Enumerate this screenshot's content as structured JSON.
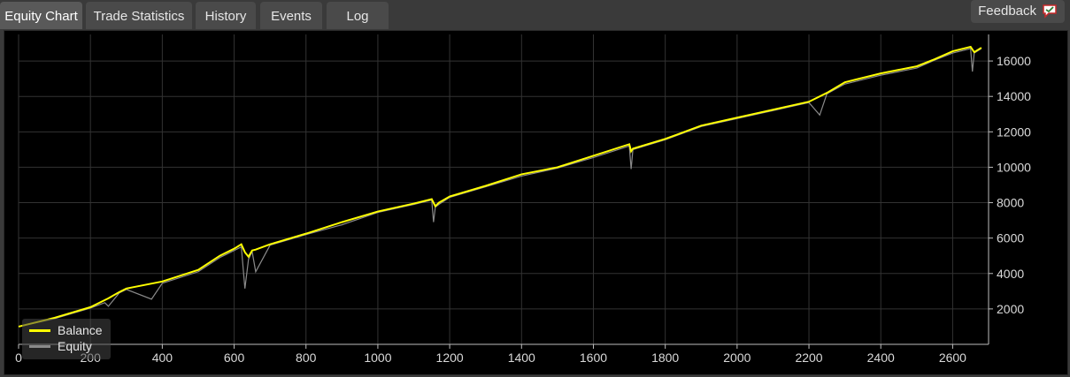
{
  "tabs": [
    {
      "label": "Equity Chart",
      "active": true
    },
    {
      "label": "Trade Statistics",
      "active": false
    },
    {
      "label": "History",
      "active": false
    },
    {
      "label": "Events",
      "active": false
    },
    {
      "label": "Log",
      "active": false
    }
  ],
  "feedback": {
    "label": "Feedback",
    "icon": "speech-bubble-icon"
  },
  "colors": {
    "balance": "#ffff00",
    "equity": "#8a8a8a",
    "grid": "#333333",
    "axis_text": "#d9d9d9",
    "background": "#000000"
  },
  "chart_data": {
    "type": "line",
    "xlim": [
      0,
      2700
    ],
    "ylim": [
      0,
      17500
    ],
    "x_ticks": [
      0,
      200,
      400,
      600,
      800,
      1000,
      1200,
      1400,
      1600,
      1800,
      2000,
      2200,
      2400,
      2600
    ],
    "y_ticks": [
      2000,
      4000,
      6000,
      8000,
      10000,
      12000,
      14000,
      16000
    ],
    "grid": true,
    "legend_position": "bottom-left",
    "series": [
      {
        "name": "Balance",
        "x": [
          0,
          100,
          200,
          240,
          250,
          280,
          300,
          400,
          500,
          560,
          600,
          620,
          630,
          640,
          650,
          660,
          700,
          800,
          900,
          1000,
          1100,
          1150,
          1160,
          1170,
          1200,
          1300,
          1400,
          1500,
          1600,
          1700,
          1705,
          1710,
          1800,
          1900,
          2000,
          2100,
          2200,
          2250,
          2300,
          2350,
          2400,
          2500,
          2550,
          2600,
          2650,
          2660,
          2680
        ],
        "y": [
          1000,
          1500,
          2100,
          2500,
          2600,
          2950,
          3150,
          3550,
          4200,
          5000,
          5400,
          5650,
          5200,
          4950,
          5300,
          5350,
          5650,
          6250,
          6900,
          7500,
          7950,
          8200,
          7800,
          8000,
          8350,
          8950,
          9600,
          10000,
          10650,
          11300,
          10900,
          11050,
          11600,
          12350,
          12800,
          13250,
          13700,
          14200,
          14800,
          15050,
          15300,
          15700,
          16100,
          16550,
          16800,
          16500,
          16750
        ]
      },
      {
        "name": "Equity",
        "x": [
          0,
          100,
          200,
          240,
          250,
          280,
          300,
          370,
          400,
          500,
          560,
          600,
          620,
          630,
          640,
          650,
          660,
          700,
          800,
          900,
          1000,
          1100,
          1150,
          1155,
          1160,
          1170,
          1200,
          1300,
          1400,
          1500,
          1600,
          1700,
          1705,
          1710,
          1800,
          1900,
          2000,
          2100,
          2200,
          2230,
          2250,
          2300,
          2350,
          2400,
          2500,
          2550,
          2600,
          2650,
          2655,
          2660,
          2680
        ],
        "y": [
          1000,
          1450,
          2050,
          2350,
          2150,
          2900,
          3100,
          2550,
          3450,
          4100,
          4900,
          5300,
          5500,
          3150,
          4800,
          5250,
          4100,
          5600,
          6200,
          6750,
          7450,
          7900,
          8150,
          6900,
          7750,
          7900,
          8300,
          8900,
          9500,
          9950,
          10550,
          11200,
          9900,
          11000,
          11550,
          12300,
          12750,
          13200,
          13650,
          12950,
          14150,
          14700,
          14950,
          15200,
          15600,
          16050,
          16450,
          16700,
          15400,
          16450,
          16700
        ]
      }
    ]
  }
}
